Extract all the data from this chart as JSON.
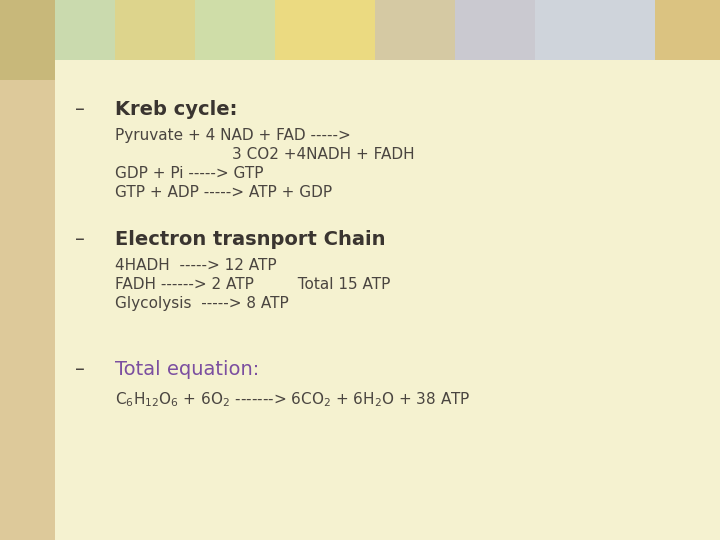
{
  "bg_main": "#f5f2d0",
  "bg_left_strip": "#e8d5b0",
  "bg_top_left": "#d4a870",
  "title1": "Kreb cycle:",
  "title1_color": "#3a3530",
  "kreb_line1": "Pyruvate + 4 NAD + FAD ----->",
  "kreb_line2": "                        3 CO2 +4NADH + FADH",
  "kreb_line3": "GDP + Pi -----> GTP",
  "kreb_line4": "GTP + ADP -----> ATP + GDP",
  "title2": "Electron trasnport Chain",
  "title2_color": "#3a3530",
  "etc_line1": "4HADH  -----> 12 ATP",
  "etc_line2": "FADH ------> 2 ATP         Total 15 ATP",
  "etc_line3": "Glycolysis  -----> 8 ATP",
  "title3": "Total equation:",
  "title3_color": "#7b4fa0",
  "body_color": "#4a4540",
  "bullet": "–",
  "bullet_color": "#4a4540",
  "figwidth": 7.2,
  "figheight": 5.4,
  "dpi": 100
}
